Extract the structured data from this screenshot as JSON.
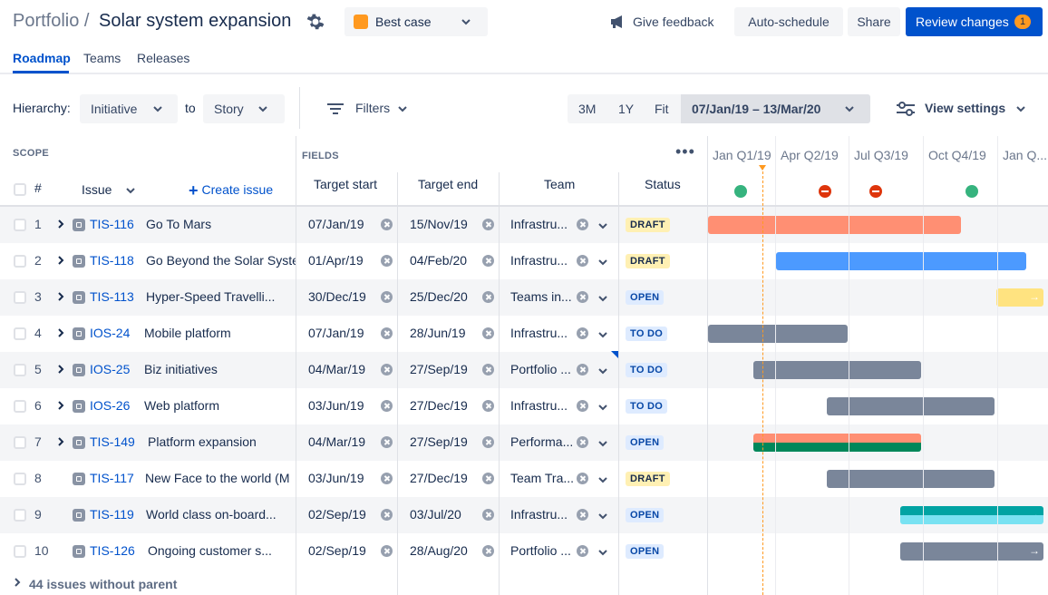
{
  "header": {
    "breadcrumb": "Portfolio /",
    "title": "Solar system expansion",
    "scenario": "Best case",
    "feedback": "Give feedback",
    "auto_schedule": "Auto-schedule",
    "share": "Share",
    "review": "Review changes",
    "review_count": "1",
    "colors": {
      "primary": "#0052CC",
      "scenario": "#FF991F"
    }
  },
  "tabs": [
    {
      "label": "Roadmap",
      "active": true
    },
    {
      "label": "Teams",
      "active": false
    },
    {
      "label": "Releases",
      "active": false
    }
  ],
  "toolbar": {
    "hierarchy_label": "Hierarchy:",
    "hierarchy_from": "Initiative",
    "to_label": "to",
    "hierarchy_to": "Story",
    "filters": "Filters",
    "range_3m": "3M",
    "range_1y": "1Y",
    "range_fit": "Fit",
    "date_range": "07/Jan/19 – 13/Mar/20",
    "view_settings": "View settings"
  },
  "grid": {
    "scope_label": "SCOPE",
    "fields_label": "FIELDS",
    "more": "•••",
    "col_num": "#",
    "col_issue": "Issue",
    "create_issue": "Create issue",
    "col_target_start": "Target start",
    "col_target_end": "Target end",
    "col_team": "Team",
    "col_status": "Status",
    "quarters": [
      "Jan Q1/19",
      "Apr Q2/19",
      "Jul Q3/19",
      "Oct Q4/19",
      "Jan Q..."
    ],
    "footer": "44 issues without parent",
    "rows": [
      {
        "num": "1",
        "key": "TIS-116",
        "summary": "Go To Mars",
        "start": "07/Jan/19",
        "end": "15/Nov/19",
        "team": "Infrastru...",
        "status": "DRAFT",
        "expandable": true
      },
      {
        "num": "2",
        "key": "TIS-118",
        "summary": "Go Beyond the Solar System",
        "start": "01/Apr/19",
        "end": "04/Feb/20",
        "team": "Infrastru...",
        "status": "DRAFT",
        "expandable": true
      },
      {
        "num": "3",
        "key": "TIS-113",
        "summary": "Hyper-Speed Travelli...",
        "start": "30/Dec/19",
        "end": "25/Dec/20",
        "team": "Teams in...",
        "status": "OPEN",
        "expandable": true
      },
      {
        "num": "4",
        "key": "IOS-24",
        "summary": "Mobile platform",
        "start": "07/Jan/19",
        "end": "28/Jun/19",
        "team": "Infrastru...",
        "status": "TO DO",
        "expandable": true
      },
      {
        "num": "5",
        "key": "IOS-25",
        "summary": "Biz initiatives",
        "start": "04/Mar/19",
        "end": "27/Sep/19",
        "team": "Portfolio ...",
        "status": "TO DO",
        "expandable": true
      },
      {
        "num": "6",
        "key": "IOS-26",
        "summary": "Web platform",
        "start": "03/Jun/19",
        "end": "27/Dec/19",
        "team": "Infrastru...",
        "status": "TO DO",
        "expandable": true
      },
      {
        "num": "7",
        "key": "TIS-149",
        "summary": "Platform expansion",
        "start": "04/Mar/19",
        "end": "27/Sep/19",
        "team": "Performa...",
        "status": "OPEN",
        "expandable": true
      },
      {
        "num": "8",
        "key": "TIS-117",
        "summary": "New Face to the world (M",
        "start": "03/Jun/19",
        "end": "27/Dec/19",
        "team": "Team Tra...",
        "status": "DRAFT",
        "expandable": false
      },
      {
        "num": "9",
        "key": "TIS-119",
        "summary": "World class on-board...",
        "start": "02/Sep/19",
        "end": "03/Jul/20",
        "team": "Infrastru...",
        "status": "OPEN",
        "expandable": false
      },
      {
        "num": "10",
        "key": "TIS-126",
        "summary": "Ongoing customer s...",
        "start": "02/Sep/19",
        "end": "28/Aug/20",
        "team": "Portfolio ...",
        "status": "OPEN",
        "expandable": false
      }
    ]
  }
}
